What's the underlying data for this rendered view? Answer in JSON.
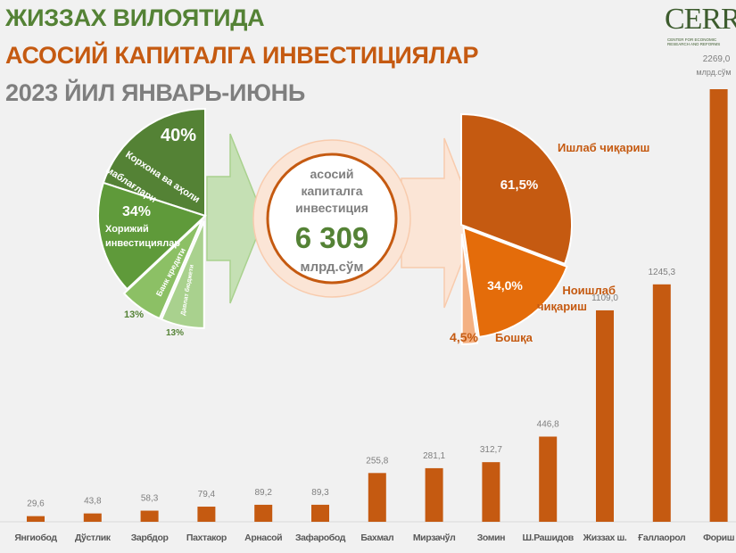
{
  "title": {
    "line1": "ЖИЗЗАХ ВИЛОЯТИДА",
    "line2": "АСОСИЙ КАПИТАЛГА ИНВЕСТИЦИЯЛАР",
    "line3": "2023 ЙИЛ ЯНВАРЬ-ИЮНЬ"
  },
  "logo": {
    "text": "CERR",
    "subtitle": "CENTER FOR ECONOMIC RESEARCH AND REFORMS"
  },
  "center": {
    "line1": "асосий",
    "line2": "капиталга",
    "line3": "инвестиция",
    "value": "6 309",
    "unit": "млрд.сўм"
  },
  "colors": {
    "green_dark": "#548235",
    "green_mid": "#70ad47",
    "green_light": "#a9d18e",
    "orange_dark": "#c55a11",
    "orange_mid": "#e46c0a",
    "orange_light": "#f4b183",
    "peach": "#fbe5d6",
    "background": "#f1f1f1"
  },
  "chart_data": [
    {
      "type": "pie",
      "slices": [
        {
          "label": "Корхона ва аҳоли маблағлари",
          "value": 40,
          "value_label": "40%",
          "color": "#548235"
        },
        {
          "label": "Хорижий инвестициялар",
          "value": 34,
          "value_label": "34%",
          "color": "#5f9a3a"
        },
        {
          "label": "Банк кредити",
          "value": 13,
          "value_label": "13%",
          "color": "#8cc065"
        },
        {
          "label": "Давлат бюджети",
          "value": 13,
          "value_label": "13%",
          "color": "#a9d18e"
        }
      ]
    },
    {
      "type": "pie",
      "slices": [
        {
          "label": "Ишлаб чиқариш",
          "value": 61.5,
          "value_label": "61,5%",
          "color": "#c55a11"
        },
        {
          "label": "Ноишлаб чиқариш",
          "value": 34.0,
          "value_label": "34,0%",
          "color": "#e46c0a"
        },
        {
          "label": "Бошқа",
          "value": 4.5,
          "value_label": "4,5%",
          "color": "#f4b183"
        }
      ]
    },
    {
      "type": "bar",
      "unit_label": "млрд.сўм",
      "categories": [
        "Янгиобод",
        "Дўстлик",
        "Зарбдор",
        "Пахтакор",
        "Арнасой",
        "Зафаробод",
        "Бахмал",
        "Мирзачўл",
        "Зомин",
        "Ш.Рашидов",
        "Жиззах ш.",
        "Ғаллаорол",
        "Фориш"
      ],
      "values": [
        29.6,
        43.8,
        58.3,
        79.4,
        89.2,
        89.3,
        255.8,
        281.1,
        312.7,
        446.8,
        1109.0,
        1245.3,
        2269.0
      ],
      "value_labels": [
        "29,6",
        "43,8",
        "58,3",
        "79,4",
        "89,2",
        "89,3",
        "255,8",
        "281,1",
        "312,7",
        "446,8",
        "1109,0",
        "1245,3",
        "2269,0"
      ],
      "color": "#c55a11",
      "ylim": [
        0,
        2269.0
      ]
    }
  ]
}
